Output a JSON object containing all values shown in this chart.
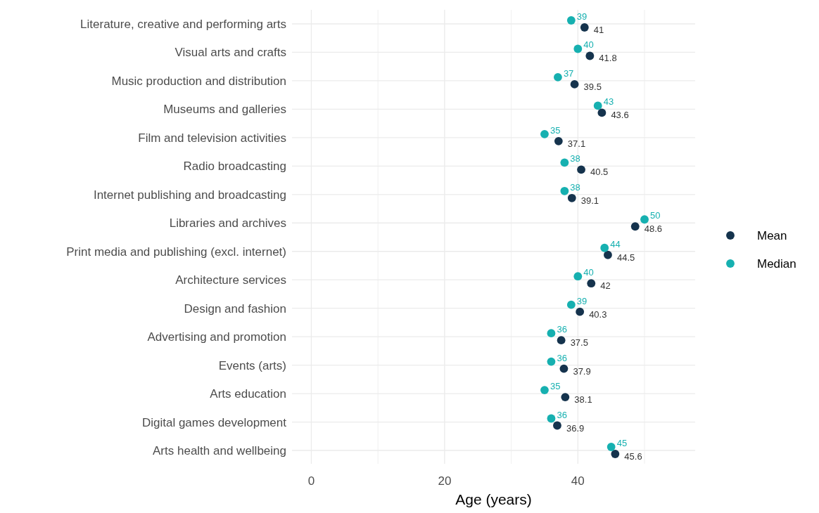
{
  "chart_data": {
    "type": "scatter",
    "orientation": "horizontal",
    "xlabel": "Age (years)",
    "categories": [
      "Literature, creative and performing arts",
      "Visual arts and crafts",
      "Music production and distribution",
      "Museums and galleries",
      "Film and television activities",
      "Radio broadcasting",
      "Internet publishing and broadcasting",
      "Libraries and archives",
      "Print media and publishing (excl. internet)",
      "Architecture services",
      "Design and fashion",
      "Advertising and promotion",
      "Events (arts)",
      "Arts education",
      "Digital games development",
      "Arts health and wellbeing"
    ],
    "series": [
      {
        "name": "Mean",
        "color": "#15334d",
        "values": [
          41,
          41.8,
          39.5,
          43.6,
          37.1,
          40.5,
          39.1,
          48.6,
          44.5,
          42,
          40.3,
          37.5,
          37.9,
          38.1,
          36.9,
          45.6
        ]
      },
      {
        "name": "Median",
        "color": "#16b0b0",
        "values": [
          39,
          40,
          37,
          43,
          35,
          38,
          38,
          50,
          44,
          40,
          39,
          36,
          36,
          35,
          36,
          45
        ]
      }
    ],
    "xlim": [
      -2.9,
      57.6
    ],
    "xticks": [
      0,
      {
        "value": 10,
        "label": null
      },
      20,
      {
        "value": 30,
        "label": null
      },
      40,
      {
        "value": 50,
        "label": null
      }
    ],
    "data_labels": true,
    "grid": true,
    "legend": "right",
    "marker": "circle"
  }
}
